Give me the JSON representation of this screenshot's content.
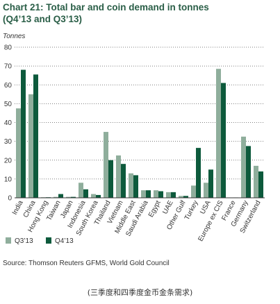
{
  "title_line1": "Chart 21: Total bar and coin demand in tonnes",
  "title_line2": "(Q4’13 and Q3’13)",
  "unit_label": "Tonnes",
  "source": "Source: Thomson Reuters GFMS, World Gold Council",
  "caption": "(三季度和四季度金币金条需求)",
  "chart_data": {
    "type": "bar",
    "title": "Chart 21: Total bar and coin demand in tonnes (Q4’13 and Q3’13)",
    "ylabel": "Tonnes",
    "xlabel": "",
    "ylim": [
      0,
      80
    ],
    "yticks": [
      0,
      10,
      20,
      30,
      40,
      50,
      60,
      70,
      80
    ],
    "grid": "horizontal dotted",
    "legend_placement": "bottom-left",
    "categories": [
      "India",
      "China",
      "Hong Kong",
      "Taiwan",
      "Japan",
      "Indonesia",
      "South Korea",
      "Thailand",
      "Vietnam",
      "Middle East",
      "Saudi Arabia",
      "Egypt",
      "UAE",
      "Other Gulf",
      "Turkey",
      "USA",
      "Europe ex CIS",
      "France",
      "Germany",
      "Switzerland"
    ],
    "series": [
      {
        "name": "Q3’13",
        "color": "#8fae9c",
        "values": [
          47.5,
          55,
          0.3,
          0.5,
          0.5,
          8,
          2,
          35,
          22.5,
          13,
          4,
          4,
          3,
          1,
          6.5,
          8,
          68.5,
          0.2,
          32.5,
          17
        ]
      },
      {
        "name": "Q4’13",
        "color": "#0d5a3c",
        "values": [
          68,
          65.5,
          0.3,
          2,
          0.5,
          4.5,
          1.5,
          20,
          18,
          12,
          4,
          3.5,
          3,
          1,
          26.5,
          15,
          61,
          0.2,
          27.5,
          14
        ]
      }
    ]
  }
}
